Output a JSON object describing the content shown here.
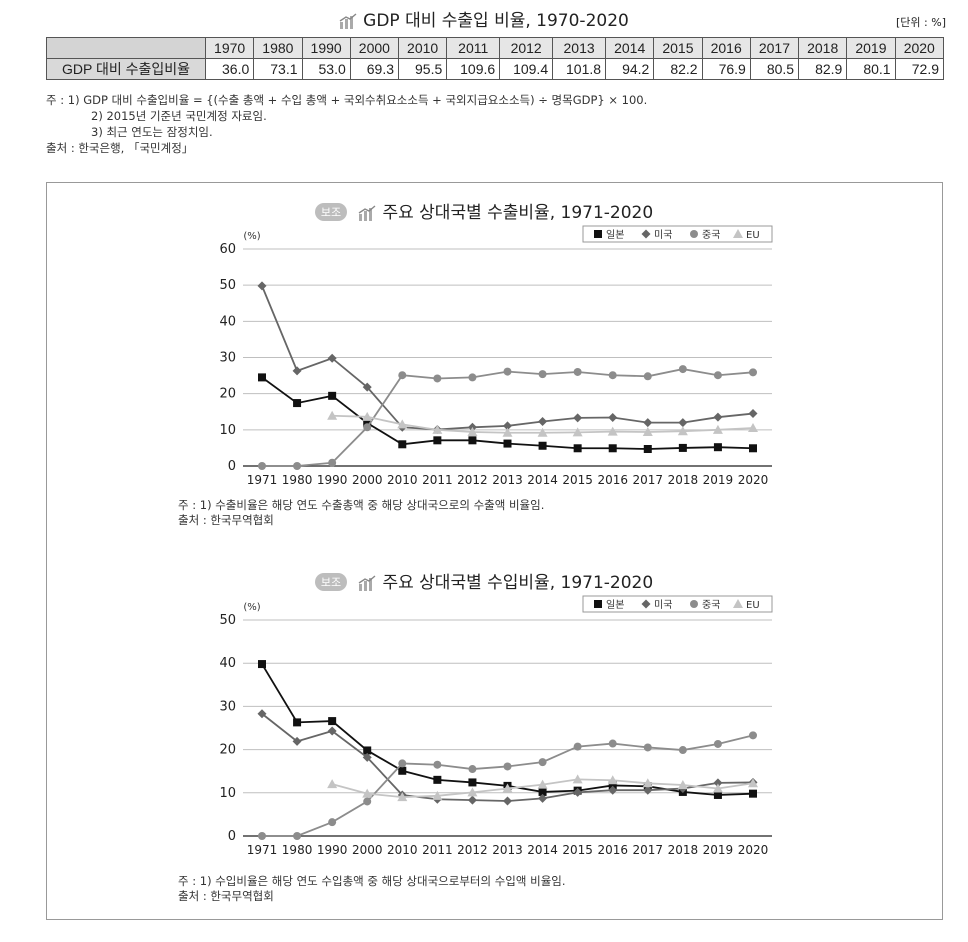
{
  "header": {
    "title": "GDP 대비 수출입 비율, 1970-2020",
    "unit": "[단위 : %]",
    "icon": "bar-chart-icon"
  },
  "table": {
    "years": [
      "1970",
      "1980",
      "1990",
      "2000",
      "2010",
      "2011",
      "2012",
      "2013",
      "2014",
      "2015",
      "2016",
      "2017",
      "2018",
      "2019",
      "2020"
    ],
    "row_label": "GDP 대비 수출입비율",
    "values": [
      "36.0",
      "73.1",
      "53.0",
      "69.3",
      "95.5",
      "109.6",
      "109.4",
      "101.8",
      "94.2",
      "82.2",
      "76.9",
      "80.5",
      "82.9",
      "80.1",
      "72.9"
    ]
  },
  "notes": {
    "note1": "주 : 1) GDP 대비 수출입비율 = {(수출 총액 + 수입 총액 + 국외수취요소소득 + 국외지급요소소득) ÷ 명목GDP} × 100.",
    "note2": "2) 2015년 기준년 국민계정 자료임.",
    "note3": "3) 최근 연도는 잠정치임.",
    "source": "출처 : 한국은행, 「국민계정」"
  },
  "legend": {
    "japan": "일본",
    "usa": "미국",
    "china": "중국",
    "eu": "EU"
  },
  "colors": {
    "japan": "#111111",
    "usa": "#666666",
    "china": "#8c8c8c",
    "eu": "#c4c4c4"
  },
  "chart_data": [
    {
      "type": "line",
      "badge": "보조",
      "title": "주요 상대국별 수출비율, 1971-2020",
      "ylabel": "(%)",
      "ylim": [
        0,
        60
      ],
      "yticks": [
        0,
        10,
        20,
        30,
        40,
        50,
        60
      ],
      "grid": true,
      "legend_position": "top-right",
      "categories": [
        "1971",
        "1980",
        "1990",
        "2000",
        "2010",
        "2011",
        "2012",
        "2013",
        "2014",
        "2015",
        "2016",
        "2017",
        "2018",
        "2019",
        "2020"
      ],
      "series": [
        {
          "name": "일본",
          "marker": "square",
          "values": [
            24.5,
            17.4,
            19.4,
            11.9,
            6.0,
            7.1,
            7.1,
            6.2,
            5.6,
            4.9,
            4.9,
            4.7,
            5.0,
            5.2,
            4.9
          ]
        },
        {
          "name": "미국",
          "marker": "diamond",
          "values": [
            49.8,
            26.3,
            29.8,
            21.8,
            10.7,
            10.1,
            10.7,
            11.1,
            12.3,
            13.3,
            13.4,
            12.0,
            12.0,
            13.5,
            14.5
          ]
        },
        {
          "name": "중국",
          "marker": "circle",
          "values": [
            0,
            0,
            0.9,
            10.7,
            25.1,
            24.2,
            24.5,
            26.1,
            25.4,
            26.0,
            25.1,
            24.8,
            26.8,
            25.1,
            25.9
          ]
        },
        {
          "name": "EU",
          "marker": "triangle",
          "values": [
            null,
            null,
            13.9,
            13.6,
            11.5,
            10.0,
            9.4,
            9.2,
            9.2,
            9.3,
            9.5,
            9.4,
            9.6,
            10.0,
            10.5
          ]
        }
      ],
      "note1": "주 : 1) 수출비율은 해당 연도 수출총액 중 해당 상대국으로의 수출액 비율임.",
      "source": "출처 : 한국무역협회"
    },
    {
      "type": "line",
      "badge": "보조",
      "title": "주요 상대국별 수입비율, 1971-2020",
      "ylabel": "(%)",
      "ylim": [
        0,
        50
      ],
      "yticks": [
        0,
        10,
        20,
        30,
        40,
        50
      ],
      "grid": true,
      "legend_position": "top-right",
      "categories": [
        "1971",
        "1980",
        "1990",
        "2000",
        "2010",
        "2011",
        "2012",
        "2013",
        "2014",
        "2015",
        "2016",
        "2017",
        "2018",
        "2019",
        "2020"
      ],
      "series": [
        {
          "name": "일본",
          "marker": "square",
          "values": [
            39.8,
            26.3,
            26.6,
            19.8,
            15.1,
            13.0,
            12.4,
            11.6,
            10.2,
            10.5,
            11.7,
            11.5,
            10.2,
            9.5,
            9.8
          ]
        },
        {
          "name": "미국",
          "marker": "diamond",
          "values": [
            28.3,
            21.9,
            24.3,
            18.2,
            9.5,
            8.5,
            8.3,
            8.1,
            8.7,
            10.1,
            10.6,
            10.6,
            11.0,
            12.3,
            12.4
          ]
        },
        {
          "name": "중국",
          "marker": "circle",
          "values": [
            0,
            0,
            3.2,
            8.0,
            16.8,
            16.5,
            15.5,
            16.1,
            17.1,
            20.7,
            21.4,
            20.5,
            19.9,
            21.3,
            23.3
          ]
        },
        {
          "name": "EU",
          "marker": "triangle",
          "values": [
            null,
            null,
            12.0,
            9.8,
            9.0,
            9.3,
            10.1,
            11.0,
            11.9,
            13.1,
            12.9,
            12.2,
            11.8,
            11.0,
            12.2
          ]
        }
      ],
      "note1": "주 : 1) 수입비율은 해당 연도 수입총액 중 해당 상대국으로부터의 수입액 비율임.",
      "source": "출처 : 한국무역협회"
    }
  ]
}
